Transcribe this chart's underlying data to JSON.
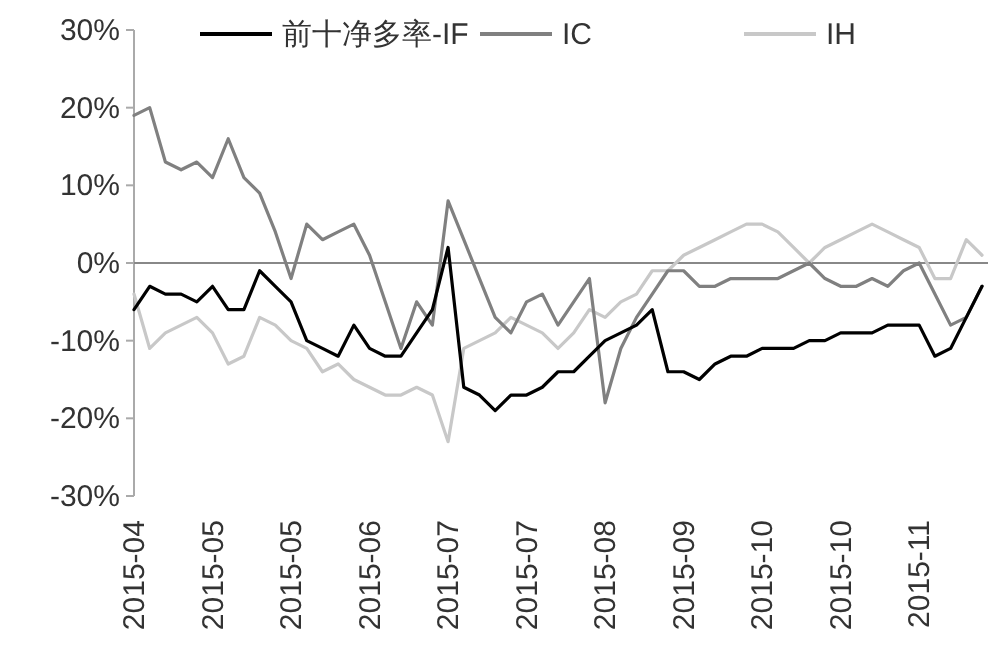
{
  "chart_data": {
    "type": "line",
    "categories": [
      "2015-04",
      null,
      null,
      null,
      null,
      "2015-05",
      null,
      null,
      null,
      null,
      "2015-05",
      null,
      null,
      null,
      null,
      "2015-06",
      null,
      null,
      null,
      null,
      "2015-07",
      null,
      null,
      null,
      null,
      "2015-07",
      null,
      null,
      null,
      null,
      "2015-08",
      null,
      null,
      null,
      null,
      "2015-09",
      null,
      null,
      null,
      null,
      "2015-10",
      null,
      null,
      null,
      null,
      "2015-10",
      null,
      null,
      null,
      null,
      "2015-11",
      null,
      null,
      null,
      null
    ],
    "series": [
      {
        "name": "前十净多率-IF",
        "color": "#000000",
        "values": [
          -6,
          -3,
          -4,
          -4,
          -5,
          -3,
          -6,
          -6,
          -1,
          -3,
          -5,
          -10,
          -11,
          -12,
          -8,
          -11,
          -12,
          -12,
          -9,
          -6,
          2,
          -16,
          -17,
          -19,
          -17,
          -17,
          -16,
          -14,
          -14,
          -12,
          -10,
          -9,
          -8,
          -6,
          -14,
          -14,
          -15,
          -13,
          -12,
          -12,
          -11,
          -11,
          -11,
          -10,
          -10,
          -9,
          -9,
          -9,
          -8,
          -8,
          -8,
          -12,
          -11,
          -7,
          -3
        ]
      },
      {
        "name": "IC",
        "color": "#808080",
        "values": [
          19,
          20,
          13,
          12,
          13,
          11,
          16,
          11,
          9,
          4,
          -2,
          5,
          3,
          4,
          5,
          1,
          -5,
          -11,
          -5,
          -8,
          8,
          3,
          -2,
          -7,
          -9,
          -5,
          -4,
          -8,
          -5,
          -2,
          -18,
          -11,
          -7,
          -4,
          -1,
          -1,
          -3,
          -3,
          -2,
          -2,
          -2,
          -2,
          -1,
          0,
          -2,
          -3,
          -3,
          -2,
          -3,
          -1,
          0,
          -4,
          -8,
          -7,
          -3
        ]
      },
      {
        "name": "IH",
        "color": "#c8c8c8",
        "values": [
          -4,
          -11,
          -9,
          -8,
          -7,
          -9,
          -13,
          -12,
          -7,
          -8,
          -10,
          -11,
          -14,
          -13,
          -15,
          -16,
          -17,
          -17,
          -16,
          -17,
          -23,
          -11,
          -10,
          -9,
          -7,
          -8,
          -9,
          -11,
          -9,
          -6,
          -7,
          -5,
          -4,
          -1,
          -1,
          1,
          2,
          3,
          4,
          5,
          5,
          4,
          2,
          0,
          2,
          3,
          4,
          5,
          4,
          3,
          2,
          -2,
          -2,
          3,
          1
        ]
      }
    ],
    "ylim": [
      -30,
      30
    ],
    "yticks": [
      {
        "value": -30,
        "label": "-30%"
      },
      {
        "value": -20,
        "label": "-20%"
      },
      {
        "value": -10,
        "label": "-10%"
      },
      {
        "value": 0,
        "label": "0%"
      },
      {
        "value": 10,
        "label": "10%"
      },
      {
        "value": 20,
        "label": "20%"
      },
      {
        "value": 30,
        "label": "30%"
      }
    ],
    "ref_lines": [
      {
        "axis": "y",
        "value": 0,
        "color": "#888888"
      }
    ],
    "legend": "top",
    "grid": false
  }
}
